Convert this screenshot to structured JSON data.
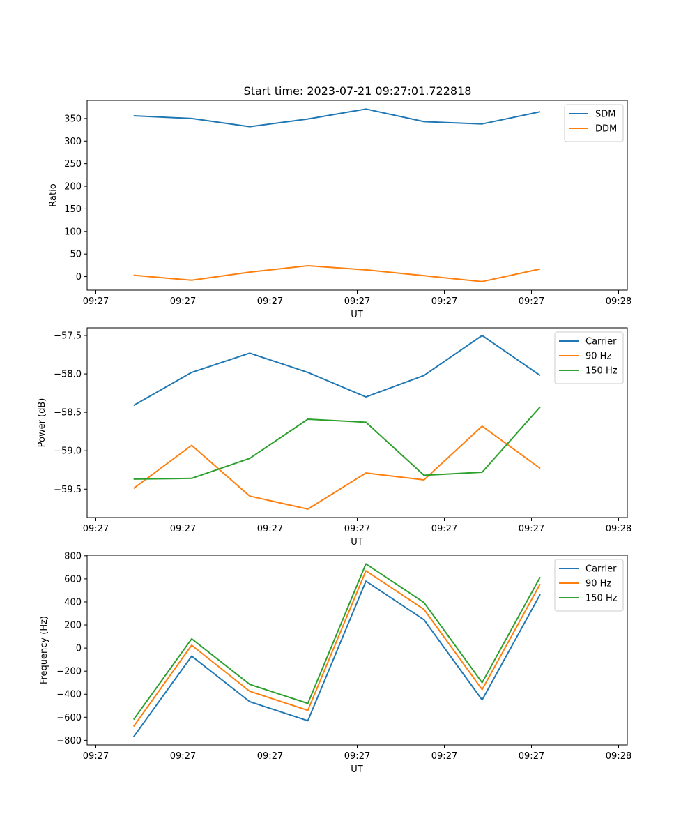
{
  "figure_title": "Start time: 2023-07-21 09:27:01.722818",
  "chart_data": [
    {
      "type": "line",
      "title": "Start time: 2023-07-21 09:27:01.722818",
      "xlabel": "UT",
      "ylabel": "Ratio",
      "x": [
        1,
        2,
        3,
        4,
        5,
        6,
        7,
        8
      ],
      "xlim": [
        0.2,
        9.5
      ],
      "xticks": [
        0.35,
        1.85,
        3.35,
        4.85,
        6.35,
        7.85,
        9.35
      ],
      "xtick_labels": [
        "09:27",
        "09:27",
        "09:27",
        "09:27",
        "09:27",
        "09:27",
        "09:28"
      ],
      "ylim": [
        -30,
        390
      ],
      "yticks": [
        0,
        50,
        100,
        150,
        200,
        250,
        300,
        350
      ],
      "ytick_labels": [
        "0",
        "50",
        "100",
        "150",
        "200",
        "250",
        "300",
        "350"
      ],
      "legend_position": "top-right",
      "series": [
        {
          "name": "SDM",
          "color": "#1f77b4",
          "values": [
            356,
            350,
            332,
            349,
            371,
            343,
            338,
            365
          ]
        },
        {
          "name": "DDM",
          "color": "#ff7f0e",
          "values": [
            3,
            -8,
            10,
            24,
            15,
            2,
            -11,
            17
          ]
        }
      ]
    },
    {
      "type": "line",
      "title": "",
      "xlabel": "UT",
      "ylabel": "Power (dB)",
      "x": [
        1,
        2,
        3,
        4,
        5,
        6,
        7,
        8
      ],
      "xlim": [
        0.2,
        9.5
      ],
      "xticks": [
        0.35,
        1.85,
        3.35,
        4.85,
        6.35,
        7.85,
        9.35
      ],
      "xtick_labels": [
        "09:27",
        "09:27",
        "09:27",
        "09:27",
        "09:27",
        "09:27",
        "09:28"
      ],
      "ylim": [
        -59.87,
        -57.4
      ],
      "yticks": [
        -59.5,
        -59.0,
        -58.5,
        -58.0,
        -57.5
      ],
      "ytick_labels": [
        "−59.5",
        "−59.0",
        "−58.5",
        "−58.0",
        "−57.5"
      ],
      "legend_position": "top-right",
      "series": [
        {
          "name": "Carrier",
          "color": "#1f77b4",
          "values": [
            -58.41,
            -57.98,
            -57.73,
            -57.98,
            -58.3,
            -58.02,
            -57.5,
            -58.02
          ]
        },
        {
          "name": "90 Hz",
          "color": "#ff7f0e",
          "values": [
            -59.49,
            -58.93,
            -59.59,
            -59.76,
            -59.29,
            -59.38,
            -58.68,
            -59.23
          ]
        },
        {
          "name": "150 Hz",
          "color": "#2ca02c",
          "values": [
            -59.37,
            -59.36,
            -59.1,
            -58.59,
            -58.63,
            -59.32,
            -59.28,
            -58.43
          ]
        }
      ]
    },
    {
      "type": "line",
      "title": "",
      "xlabel": "UT",
      "ylabel": "Frequency (Hz)",
      "x": [
        1,
        2,
        3,
        4,
        5,
        6,
        7,
        8
      ],
      "xlim": [
        0.2,
        9.5
      ],
      "xticks": [
        0.35,
        1.85,
        3.35,
        4.85,
        6.35,
        7.85,
        9.35
      ],
      "xtick_labels": [
        "09:27",
        "09:27",
        "09:27",
        "09:27",
        "09:27",
        "09:27",
        "09:28"
      ],
      "ylim": [
        -840,
        805
      ],
      "yticks": [
        -800,
        -600,
        -400,
        -200,
        0,
        200,
        400,
        600,
        800
      ],
      "ytick_labels": [
        "−800",
        "−600",
        "−400",
        "−200",
        "0",
        "200",
        "400",
        "600",
        "800"
      ],
      "legend_position": "top-right",
      "series": [
        {
          "name": "Carrier",
          "color": "#1f77b4",
          "values": [
            -770,
            -70,
            -465,
            -630,
            580,
            245,
            -450,
            465
          ]
        },
        {
          "name": "90 Hz",
          "color": "#ff7f0e",
          "values": [
            -680,
            25,
            -375,
            -540,
            670,
            335,
            -360,
            555
          ]
        },
        {
          "name": "150 Hz",
          "color": "#2ca02c",
          "values": [
            -620,
            80,
            -315,
            -480,
            730,
            395,
            -300,
            615
          ]
        }
      ]
    }
  ]
}
